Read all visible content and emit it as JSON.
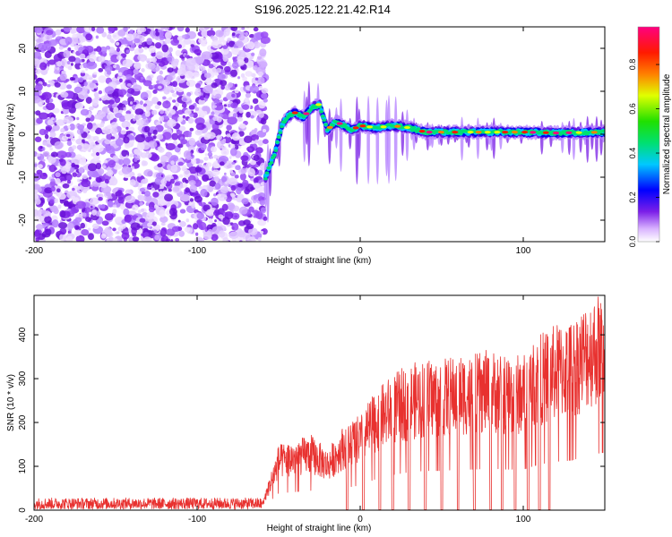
{
  "title": "S196.2025.122.21.42.R14",
  "chart_data": [
    {
      "type": "heatmap",
      "xlabel": "Height of straight line (km)",
      "ylabel": "Frequency (Hz)",
      "xlim": [
        -200,
        150
      ],
      "ylim": [
        -25,
        25
      ],
      "x_ticks": [
        -200,
        -100,
        0,
        100
      ],
      "y_ticks": [
        -20,
        -10,
        0,
        10,
        20
      ],
      "colorbar": {
        "label": "Normalized spectral amplitude",
        "range": [
          0,
          0.97
        ],
        "ticks": [
          0.0,
          0.2,
          0.4,
          0.6,
          0.8
        ],
        "tick_labels": [
          "0.0",
          "0.2",
          "0.4",
          "0.6",
          "0.8"
        ],
        "colormap": "rainbow"
      },
      "noise_region": {
        "x_range": [
          -200,
          -58
        ],
        "y_range": [
          -25,
          25
        ]
      },
      "signal_ridge": [
        {
          "x": -58,
          "y": -10
        },
        {
          "x": -55,
          "y": -7
        },
        {
          "x": -52,
          "y": -4
        },
        {
          "x": -50,
          "y": -1
        },
        {
          "x": -48,
          "y": 2
        },
        {
          "x": -45,
          "y": 4
        },
        {
          "x": -40,
          "y": 5
        },
        {
          "x": -35,
          "y": 4
        },
        {
          "x": -30,
          "y": 6
        },
        {
          "x": -25,
          "y": 7
        },
        {
          "x": -20,
          "y": 1
        },
        {
          "x": -15,
          "y": 3
        },
        {
          "x": -10,
          "y": 2
        },
        {
          "x": -5,
          "y": 1
        },
        {
          "x": 0,
          "y": 2
        },
        {
          "x": 10,
          "y": 1.5
        },
        {
          "x": 20,
          "y": 2
        },
        {
          "x": 30,
          "y": 1.5
        },
        {
          "x": 40,
          "y": 0.5
        },
        {
          "x": 60,
          "y": 0.5
        },
        {
          "x": 80,
          "y": 0.5
        },
        {
          "x": 100,
          "y": 0.5
        },
        {
          "x": 120,
          "y": 0.3
        },
        {
          "x": 150,
          "y": 0.5
        }
      ]
    },
    {
      "type": "line",
      "xlabel": "Height of straight line (km)",
      "ylabel": "SNR (10 * v/v)",
      "xlim": [
        -200,
        150
      ],
      "ylim": [
        0,
        490
      ],
      "x_ticks": [
        -200,
        -100,
        0,
        100
      ],
      "y_ticks": [
        0,
        100,
        200,
        300,
        400
      ],
      "color": "#e8312f",
      "series": [
        {
          "x": [
            -200,
            -150,
            -100,
            -60,
            -50,
            -40,
            -30,
            -20,
            -10,
            0,
            10,
            20,
            30,
            40,
            50,
            60,
            70,
            80,
            90,
            100,
            110,
            120,
            130,
            140,
            150
          ],
          "values": [
            15,
            15,
            15,
            15,
            130,
            140,
            150,
            120,
            170,
            190,
            240,
            270,
            290,
            300,
            300,
            310,
            310,
            320,
            310,
            310,
            350,
            370,
            380,
            420,
            440
          ]
        }
      ],
      "dropouts_x": [
        -8,
        2,
        12,
        20,
        30,
        40,
        50,
        60,
        70,
        80,
        87,
        95,
        103,
        110,
        116
      ]
    }
  ]
}
